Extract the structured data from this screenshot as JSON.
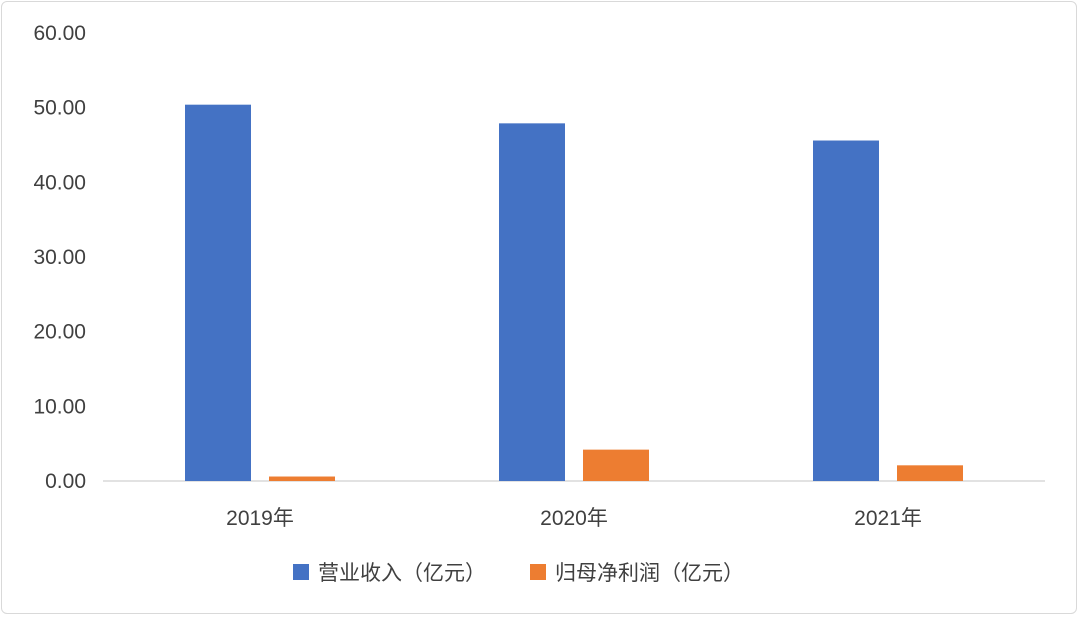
{
  "chart_data": {
    "type": "bar",
    "categories": [
      "2019年",
      "2020年",
      "2021年"
    ],
    "series": [
      {
        "name": "营业收入（亿元）",
        "color": "#4472C4",
        "values": [
          50.4,
          47.9,
          45.6
        ]
      },
      {
        "name": "归母净利润（亿元）",
        "color": "#ED7D31",
        "values": [
          0.6,
          4.2,
          2.1
        ]
      }
    ],
    "ylim": [
      0,
      60
    ],
    "y_ticks": [
      "0.00",
      "10.00",
      "20.00",
      "30.00",
      "40.00",
      "50.00",
      "60.00"
    ],
    "grid": false,
    "legend_position": "bottom"
  }
}
